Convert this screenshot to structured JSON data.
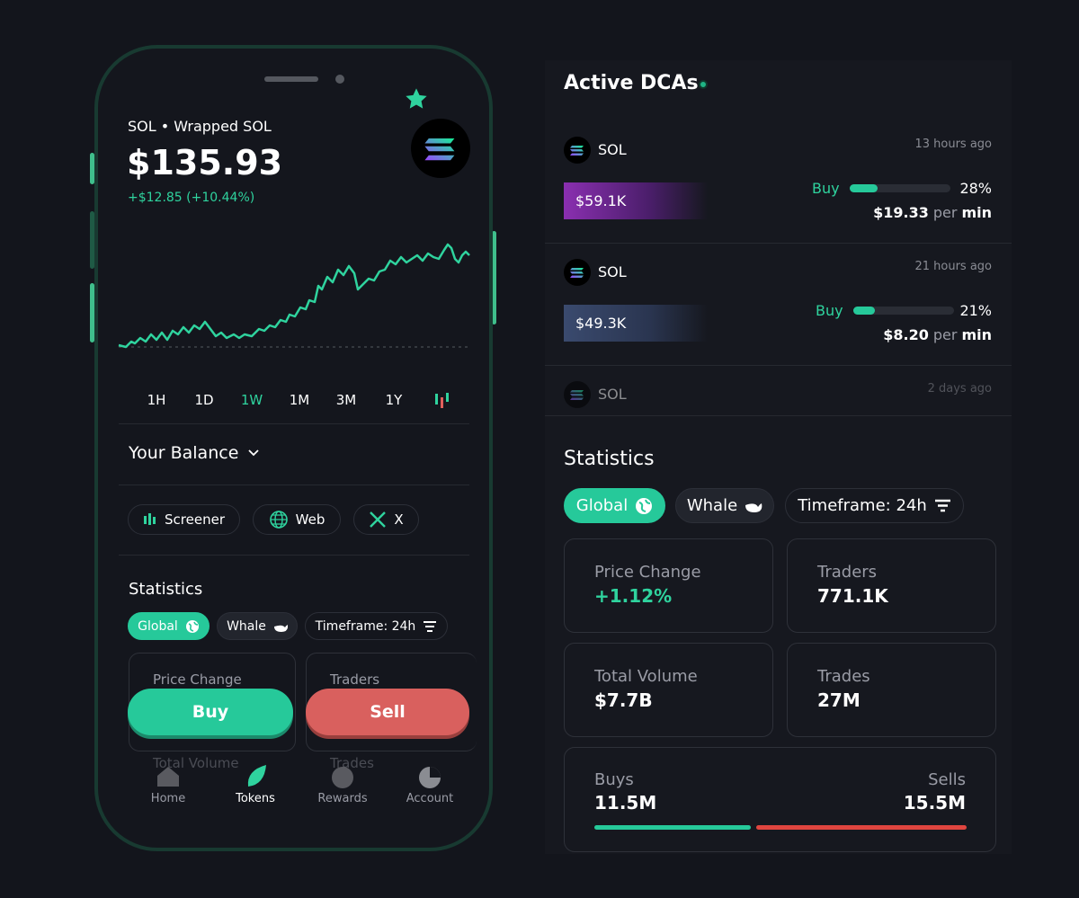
{
  "phone": {
    "token": "SOL • Wrapped SOL",
    "price": "$135.93",
    "change": "+$12.85 (+10.44%)",
    "timeframes": [
      "1H",
      "1D",
      "1W",
      "1M",
      "3M",
      "1Y"
    ],
    "balance": "Your Balance",
    "links": [
      "Screener",
      "Web",
      "X"
    ],
    "statistics": {
      "title": "Statistics",
      "filters": [
        "Global",
        "Whale",
        "Timeframe: 24h"
      ],
      "cards": [
        "Price Change",
        "Traders",
        "Total Volume",
        "Trades"
      ]
    },
    "buy": "Buy",
    "sell": "Sell",
    "nav": [
      "Home",
      "Tokens",
      "Rewards",
      "Account"
    ]
  },
  "dcas": {
    "title": "Active DCAs",
    "items": [
      {
        "token": "SOL",
        "time": "13 hours ago",
        "amount": "$59.1K",
        "side": "Buy",
        "progress": "28%",
        "rate": "$19.33",
        "per": "per",
        "unit": "min"
      },
      {
        "token": "SOL",
        "time": "21 hours ago",
        "amount": "$49.3K",
        "side": "Buy",
        "progress": "21%",
        "rate": "$8.20",
        "per": "per",
        "unit": "min"
      },
      {
        "token": "SOL",
        "time": "2 days ago"
      }
    ]
  },
  "statistics": {
    "title": "Statistics",
    "filters": [
      "Global",
      "Whale",
      "Timeframe: 24h"
    ],
    "cards": [
      {
        "label": "Price Change",
        "value": "+1.12%"
      },
      {
        "label": "Traders",
        "value": "771.1K"
      },
      {
        "label": "Total Volume",
        "value": "$7.7B"
      },
      {
        "label": "Trades",
        "value": "27M"
      }
    ],
    "buys": {
      "label": "Buys",
      "value": "11.5M"
    },
    "sells": {
      "label": "Sells",
      "value": "15.5M"
    }
  }
}
